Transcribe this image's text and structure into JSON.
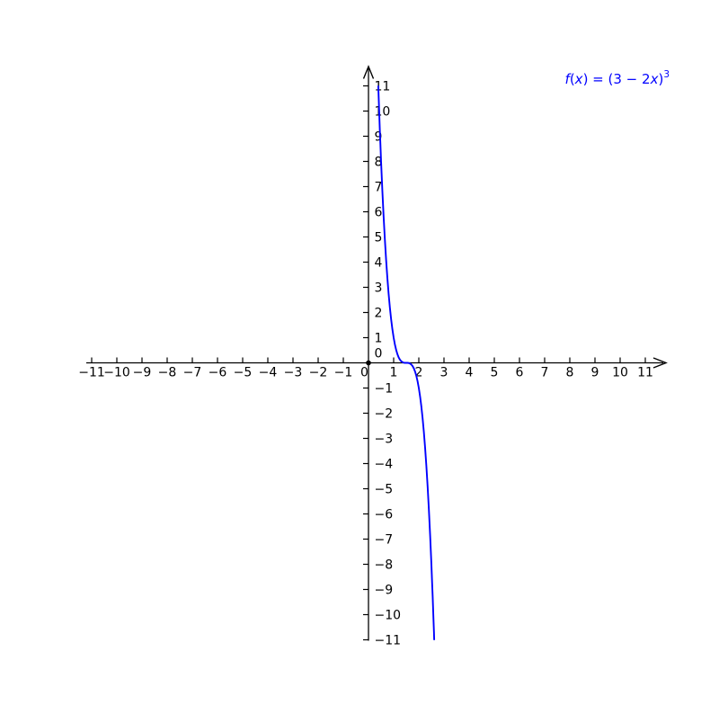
{
  "figure": {
    "background": "#ffffff",
    "axis_color": "#000000",
    "tick_label_color": "#000000"
  },
  "function_label": {
    "text": "f(x) = (3 − 2x)³",
    "color": "#0000ff",
    "parts": [
      {
        "t": "f",
        "s": "it"
      },
      {
        "t": "(",
        "s": "up"
      },
      {
        "t": "x",
        "s": "it"
      },
      {
        "t": ") = (3 − 2",
        "s": "up"
      },
      {
        "t": "x",
        "s": "it"
      },
      {
        "t": ")",
        "s": "up"
      },
      {
        "t": "3",
        "s": "sup"
      }
    ]
  },
  "chart_data": {
    "type": "line",
    "title": "",
    "xlabel": "",
    "ylabel": "",
    "grid": false,
    "legend_position": "top-right",
    "xlim": [
      -11,
      11
    ],
    "ylim": [
      -11,
      11
    ],
    "axis_color": "#000000",
    "background": "#ffffff",
    "x_ticks": {
      "values": [
        -11,
        -10,
        -9,
        -8,
        -7,
        -6,
        -5,
        -4,
        -3,
        -2,
        -1,
        0,
        1,
        2,
        3,
        4,
        5,
        6,
        7,
        8,
        9,
        10,
        11
      ],
      "labels": [
        "−11",
        "−10",
        "−9",
        "−8",
        "−7",
        "−6",
        "−5",
        "−4",
        "−3",
        "−2",
        "−1",
        "0",
        "1",
        "2",
        "3",
        "4",
        "5",
        "6",
        "7",
        "8",
        "9",
        "10",
        "11"
      ]
    },
    "y_ticks": {
      "values": [
        -11,
        -10,
        -9,
        -8,
        -7,
        -6,
        -5,
        -4,
        -3,
        -2,
        -1,
        0,
        1,
        2,
        3,
        4,
        5,
        6,
        7,
        8,
        9,
        10,
        11
      ],
      "labels": [
        "−11",
        "−10",
        "−9",
        "−8",
        "−7",
        "−6",
        "−5",
        "−4",
        "−3",
        "−2",
        "−1",
        "0",
        "1",
        "2",
        "3",
        "4",
        "5",
        "6",
        "7",
        "8",
        "9",
        "10",
        "11"
      ]
    },
    "origin_marker": true,
    "series": [
      {
        "name": "f(x) = (3 − 2x)³",
        "expression": "(3 − 2x)³",
        "color": "#0000ff",
        "points": [
          [
            0.389,
            10.985
          ],
          [
            0.42,
            10.078
          ],
          [
            0.45,
            9.261
          ],
          [
            0.47,
            8.742
          ],
          [
            0.5,
            8.0
          ],
          [
            0.55,
            6.859
          ],
          [
            0.6,
            5.832
          ],
          [
            0.65,
            4.913
          ],
          [
            0.7,
            4.096
          ],
          [
            0.75,
            3.375
          ],
          [
            0.8,
            2.744
          ],
          [
            0.85,
            2.197
          ],
          [
            0.9,
            1.728
          ],
          [
            0.95,
            1.331
          ],
          [
            1.0,
            1.0
          ],
          [
            1.05,
            0.729
          ],
          [
            1.1,
            0.512
          ],
          [
            1.15,
            0.343
          ],
          [
            1.2,
            0.216
          ],
          [
            1.25,
            0.125
          ],
          [
            1.3,
            0.064
          ],
          [
            1.35,
            0.027
          ],
          [
            1.4,
            0.008
          ],
          [
            1.45,
            0.001
          ],
          [
            1.5,
            0.0
          ],
          [
            1.55,
            -0.001
          ],
          [
            1.6,
            -0.008
          ],
          [
            1.65,
            -0.027
          ],
          [
            1.7,
            -0.064
          ],
          [
            1.75,
            -0.125
          ],
          [
            1.8,
            -0.216
          ],
          [
            1.85,
            -0.343
          ],
          [
            1.9,
            -0.512
          ],
          [
            1.95,
            -0.729
          ],
          [
            2.0,
            -1.0
          ],
          [
            2.05,
            -1.331
          ],
          [
            2.1,
            -1.728
          ],
          [
            2.15,
            -2.197
          ],
          [
            2.2,
            -2.744
          ],
          [
            2.25,
            -3.375
          ],
          [
            2.3,
            -4.096
          ],
          [
            2.35,
            -4.913
          ],
          [
            2.4,
            -5.832
          ],
          [
            2.45,
            -6.859
          ],
          [
            2.5,
            -8.0
          ],
          [
            2.53,
            -8.742
          ],
          [
            2.55,
            -9.261
          ],
          [
            2.58,
            -10.078
          ],
          [
            2.6,
            -10.648
          ],
          [
            2.612,
            -10.985
          ]
        ]
      }
    ]
  }
}
